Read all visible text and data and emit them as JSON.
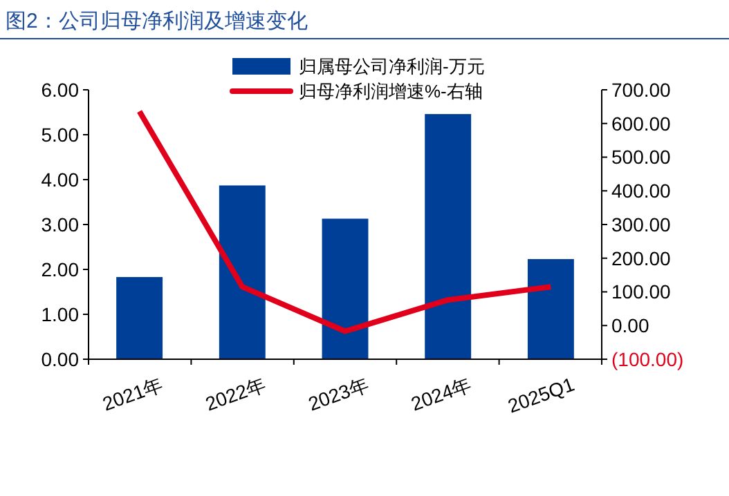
{
  "chart_data": {
    "type": "bar",
    "title": "图2：公司归母净利润及增速变化",
    "categories": [
      "2021年",
      "2022年",
      "2023年",
      "2024年",
      "2025Q1"
    ],
    "series": [
      {
        "name": "归属母公司净利润-万元",
        "color": "#003f98",
        "values": [
          1.83,
          3.87,
          3.13,
          5.46,
          2.23
        ]
      },
      {
        "name": "归母净利润增速%-右轴",
        "type": "line",
        "axis": "y2",
        "color": "#e0001b",
        "values": [
          636,
          115,
          -17,
          76,
          115
        ]
      }
    ],
    "ylim": [
      0,
      6
    ],
    "yticks": [
      {
        "value": 0,
        "label": "0.00"
      },
      {
        "value": 1,
        "label": "1.00"
      },
      {
        "value": 2,
        "label": "2.00"
      },
      {
        "value": 3,
        "label": "3.00"
      },
      {
        "value": 4,
        "label": "4.00"
      },
      {
        "value": 5,
        "label": "5.00"
      },
      {
        "value": 6,
        "label": "6.00"
      }
    ],
    "y2lim": [
      -100,
      700
    ],
    "y2ticks": [
      {
        "value": -100,
        "label": "(100.00)"
      },
      {
        "value": 0,
        "label": "0.00"
      },
      {
        "value": 100,
        "label": "100.00"
      },
      {
        "value": 200,
        "label": "200.00"
      },
      {
        "value": 300,
        "label": "300.00"
      },
      {
        "value": 400,
        "label": "400.00"
      },
      {
        "value": 500,
        "label": "500.00"
      },
      {
        "value": 600,
        "label": "600.00"
      },
      {
        "value": 700,
        "label": "700.00"
      }
    ],
    "legend": "top",
    "grid": false
  }
}
